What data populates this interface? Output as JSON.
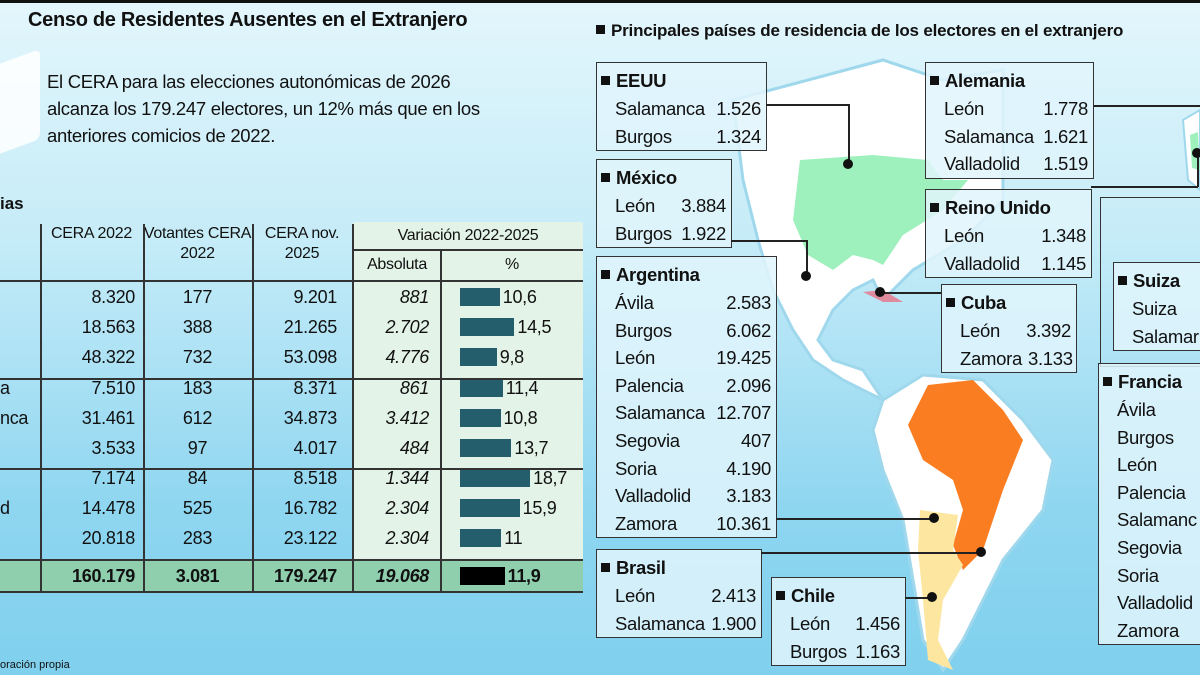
{
  "header": {
    "title": "Censo de Residentes Ausentes en el Extranjero",
    "lead": "El CERA para las elecciones autonómicas de 2026 alcanza los 179.247 electores, un 12% más que en los anteriores comicios de 2022."
  },
  "table": {
    "title_fragment": "ias",
    "headers": {
      "cera2022": "CERA 2022",
      "votantes": "Votantes CERA 2022",
      "cera2025": "CERA nov. 2025",
      "variacion": "Variación 2022-2025",
      "absoluta": "Absoluta",
      "pct": "%"
    },
    "rows": [
      {
        "label": "",
        "cera2022": "8.320",
        "votantes": "177",
        "cera2025": "9.201",
        "abs": "881",
        "pct": "10,6",
        "pct_value": 10.6
      },
      {
        "label": "",
        "cera2022": "18.563",
        "votantes": "388",
        "cera2025": "21.265",
        "abs": "2.702",
        "pct": "14,5",
        "pct_value": 14.5
      },
      {
        "label": "",
        "cera2022": "48.322",
        "votantes": "732",
        "cera2025": "53.098",
        "abs": "4.776",
        "pct": "9,8",
        "pct_value": 9.8
      },
      {
        "label": "a",
        "cera2022": "7.510",
        "votantes": "183",
        "cera2025": "8.371",
        "abs": "861",
        "pct": "11,4",
        "pct_value": 11.4
      },
      {
        "label": "nca",
        "cera2022": "31.461",
        "votantes": "612",
        "cera2025": "34.873",
        "abs": "3.412",
        "pct": "10,8",
        "pct_value": 10.8
      },
      {
        "label": "",
        "cera2022": "3.533",
        "votantes": "97",
        "cera2025": "4.017",
        "abs": "484",
        "pct": "13,7",
        "pct_value": 13.7
      },
      {
        "label": "",
        "cera2022": "7.174",
        "votantes": "84",
        "cera2025": "8.518",
        "abs": "1.344",
        "pct": "18,7",
        "pct_value": 18.7
      },
      {
        "label": "d",
        "cera2022": "14.478",
        "votantes": "525",
        "cera2025": "16.782",
        "abs": "2.304",
        "pct": "15,9",
        "pct_value": 15.9
      },
      {
        "label": "",
        "cera2022": "20.818",
        "votantes": "283",
        "cera2025": "23.122",
        "abs": "2.304",
        "pct": "11",
        "pct_value": 11
      }
    ],
    "total": {
      "cera2022": "160.179",
      "votantes": "3.081",
      "cera2025": "179.247",
      "abs": "19.068",
      "pct": "11,9",
      "pct_value": 11.9
    },
    "bar_color": "#245d6c",
    "total_bar_color": "#000000"
  },
  "footer": "oración propia",
  "map": {
    "title": "Principales países de residencia de los electores en el extranjero",
    "colors": {
      "eeuu": "#9ef0bd",
      "brasil": "#fb7d22",
      "argentina": "#fde7a0",
      "cuba": "#e08a9e"
    },
    "countries": {
      "eeuu": {
        "name": "EEUU",
        "rows": [
          [
            "Salamanca",
            "1.526"
          ],
          [
            "Burgos",
            "1.324"
          ]
        ]
      },
      "mexico": {
        "name": "México",
        "rows": [
          [
            "León",
            "3.884"
          ],
          [
            "Burgos",
            "1.922"
          ]
        ]
      },
      "argentina": {
        "name": "Argentina",
        "rows": [
          [
            "Ávila",
            "2.583"
          ],
          [
            "Burgos",
            "6.062"
          ],
          [
            "León",
            "19.425"
          ],
          [
            "Palencia",
            "2.096"
          ],
          [
            "Salamanca",
            "12.707"
          ],
          [
            "Segovia",
            "407"
          ],
          [
            "Soria",
            "4.190"
          ],
          [
            "Valladolid",
            "3.183"
          ],
          [
            "Zamora",
            "10.361"
          ]
        ]
      },
      "brasil": {
        "name": "Brasil",
        "rows": [
          [
            "León",
            "2.413"
          ],
          [
            "Salamanca",
            "1.900"
          ]
        ]
      },
      "chile": {
        "name": "Chile",
        "rows": [
          [
            "León",
            "1.456"
          ],
          [
            "Burgos",
            "1.163"
          ]
        ]
      },
      "alemania": {
        "name": "Alemania",
        "rows": [
          [
            "León",
            "1.778"
          ],
          [
            "Salamanca",
            "1.621"
          ],
          [
            "Valladolid",
            "1.519"
          ]
        ]
      },
      "reino_unido": {
        "name": "Reino Unido",
        "rows": [
          [
            "León",
            "1.348"
          ],
          [
            "Valladolid",
            "1.145"
          ]
        ]
      },
      "cuba": {
        "name": "Cuba",
        "rows": [
          [
            "León",
            "3.392"
          ],
          [
            "Zamora",
            "3.133"
          ]
        ]
      },
      "suiza": {
        "name": "Suiza",
        "rows": [
          [
            "Suiza",
            ""
          ],
          [
            "Salamar",
            ""
          ]
        ]
      },
      "francia": {
        "name": "Francia",
        "rows": [
          [
            "Ávila",
            ""
          ],
          [
            "Burgos",
            ""
          ],
          [
            "León",
            ""
          ],
          [
            "Palencia",
            ""
          ],
          [
            "Salamanc",
            ""
          ],
          [
            "Segovia",
            ""
          ],
          [
            "Soria",
            ""
          ],
          [
            "Valladolid",
            ""
          ],
          [
            "Zamora",
            ""
          ]
        ]
      }
    }
  }
}
